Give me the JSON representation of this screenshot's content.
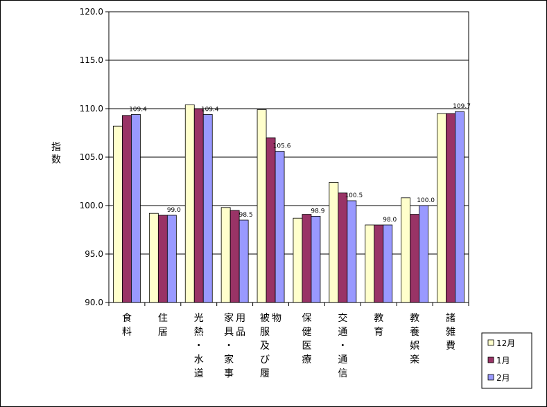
{
  "chart_data": {
    "type": "bar",
    "ylabel": "指数",
    "ylim": [
      90,
      120
    ],
    "y_ticks": [
      "90.0",
      "95.0",
      "100.0",
      "105.0",
      "110.0",
      "115.0",
      "120.0"
    ],
    "grid": true,
    "legend_position": "bottom-right",
    "categories": [
      "食料",
      "住居",
      "光熱・水道",
      "家具・家事用品",
      "被服及び履物",
      "保健医療",
      "交通・通信",
      "教育",
      "教養娯楽",
      "諸雑費"
    ],
    "series": [
      {
        "name": "12月",
        "color": "#FFFFCC",
        "values": [
          108.2,
          99.2,
          110.4,
          99.8,
          109.9,
          98.7,
          102.4,
          98.0,
          100.8,
          109.5
        ]
      },
      {
        "name": "1月",
        "color": "#993366",
        "values": [
          109.3,
          99.0,
          110.0,
          99.5,
          107.0,
          99.1,
          101.3,
          98.0,
          99.1,
          109.5
        ]
      },
      {
        "name": "2月",
        "color": "#9999FF",
        "values": [
          109.4,
          99.0,
          109.4,
          98.5,
          105.6,
          98.9,
          100.5,
          98.0,
          100.0,
          109.7
        ]
      }
    ],
    "data_labels": [
      "109.4",
      "99.0",
      "109.4",
      "98.5",
      "105.6",
      "98.9",
      "100.5",
      "98.0",
      "100.0",
      "109.7"
    ]
  }
}
